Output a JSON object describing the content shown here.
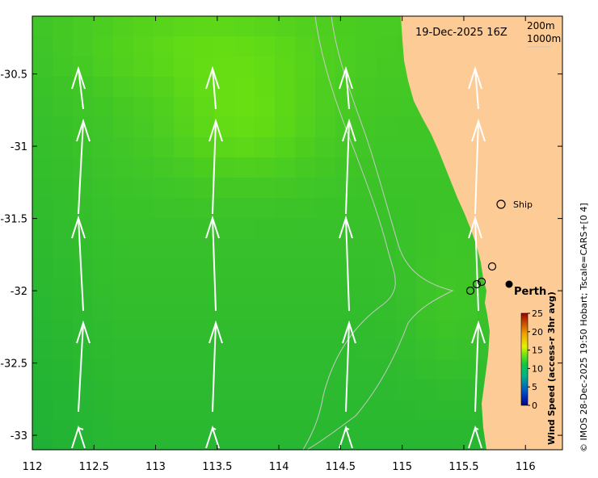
{
  "map": {
    "date_label": "19-Dec-2025 16Z",
    "depth_contours": [
      "200m",
      "1000m"
    ],
    "places": {
      "ship": "Ship",
      "city": "Perth"
    },
    "colorbar": {
      "title": "Wind Speed (access-r 3hr avg)",
      "ticks": [
        "25",
        "20",
        "15",
        "10",
        "5",
        "0"
      ],
      "range": [
        0,
        25
      ]
    },
    "credit": "© IMOS 28-Dec-2025 19:50 Hobart; Tscale=CARS+[0 4]",
    "x_ticks": [
      "112",
      "112.5",
      "113",
      "113.5",
      "114",
      "114.5",
      "115",
      "115.5",
      "116"
    ],
    "y_ticks": [
      "-30.5",
      "-31",
      "-31.5",
      "-32",
      "-32.5",
      "-33"
    ],
    "lon_range": [
      112,
      116.3
    ],
    "lat_range": [
      -33.1,
      -30.1
    ],
    "colors": {
      "land": "#FDCB95",
      "ocean_base": "#22C81E",
      "arrow": "#FFFFFF",
      "contour": "#C8C8C8"
    }
  }
}
